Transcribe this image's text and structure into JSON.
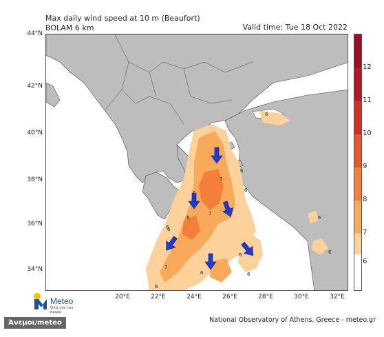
{
  "title": {
    "line1": "Max daily wind speed at 10 m (Beaufort)",
    "line2": "BOLAM 6 km"
  },
  "valid_time": "Valid time: Tue 18 Oct 2022",
  "lat_ticks": [
    "44°N",
    "42°N",
    "40°N",
    "38°N",
    "36°N",
    "34°N"
  ],
  "lon_ticks": [
    "20°E",
    "22°E",
    "24°E",
    "26°E",
    "28°E",
    "30°E",
    "32°E"
  ],
  "colorbar": {
    "labels": [
      "12",
      "11",
      "10",
      "9",
      "8",
      "7",
      "6"
    ],
    "colors": [
      "#9b0f22",
      "#b8161e",
      "#d43022",
      "#e8552b",
      "#f47f3a",
      "#f8a95a",
      "#fdd19a"
    ]
  },
  "wind_labels": [
    "6",
    "6",
    "6",
    "6",
    "6",
    "6",
    "6",
    "6",
    "7",
    "7",
    "7",
    "7",
    "8",
    "6",
    "6",
    "6"
  ],
  "logo": {
    "name": "Meteo",
    "tagline": "Όλα για τον καιρό"
  },
  "footer": "National Observatory of Athens, Greece - meteo.gr",
  "badge": "Άνεμοι/meteo",
  "colors": {
    "sea": "#ffffff",
    "land": "#bdbdbd",
    "border": "#444444",
    "wind6": "#fdd19a",
    "wind7": "#f8a95a",
    "wind8": "#f47f3a",
    "arrow": "#1f3bd1",
    "logo_blue": "#1d4f9c",
    "logo_yellow": "#f5c400"
  }
}
